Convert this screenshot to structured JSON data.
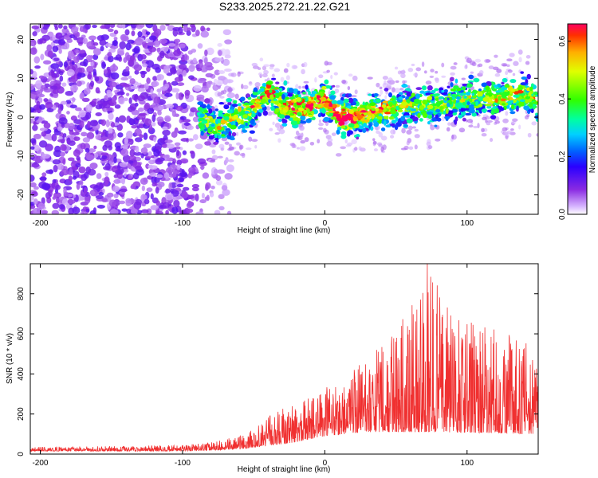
{
  "title": "S233.2025.272.21.22.G21",
  "chart_data": [
    {
      "type": "heatmap",
      "xlabel": "Height of straight line (km)",
      "ylabel": "Frequency (Hz)",
      "xlim": [
        -207,
        150
      ],
      "ylim": [
        -25,
        24
      ],
      "x_ticks": [
        -200,
        -100,
        0,
        100
      ],
      "y_ticks": [
        -20,
        -10,
        0,
        10,
        20
      ],
      "colorbar": {
        "label": "Normalized spectral amplitude",
        "range": [
          0,
          0.66
        ],
        "ticks": [
          0.0,
          0.2,
          0.4,
          0.6
        ]
      },
      "ridge": [
        {
          "x": -85,
          "y": 0
        },
        {
          "x": -75,
          "y": -3
        },
        {
          "x": -65,
          "y": 0
        },
        {
          "x": -55,
          "y": 1
        },
        {
          "x": -45,
          "y": 4
        },
        {
          "x": -40,
          "y": 7
        },
        {
          "x": -30,
          "y": 3
        },
        {
          "x": -20,
          "y": 2
        },
        {
          "x": -10,
          "y": 3
        },
        {
          "x": 0,
          "y": 5
        },
        {
          "x": 10,
          "y": 0
        },
        {
          "x": 20,
          "y": 0
        },
        {
          "x": 40,
          "y": 2
        },
        {
          "x": 60,
          "y": 3
        },
        {
          "x": 80,
          "y": 3
        },
        {
          "x": 100,
          "y": 5
        },
        {
          "x": 120,
          "y": 5
        },
        {
          "x": 140,
          "y": 6
        },
        {
          "x": 150,
          "y": 4
        }
      ],
      "amplitude_by_height": [
        {
          "x": -85,
          "value": 0.3
        },
        {
          "x": -60,
          "value": 0.35
        },
        {
          "x": -40,
          "value": 0.45
        },
        {
          "x": -10,
          "value": 0.55
        },
        {
          "x": 10,
          "value": 0.65
        },
        {
          "x": 20,
          "value": 0.6
        },
        {
          "x": 60,
          "value": 0.3
        },
        {
          "x": 100,
          "value": 0.3
        },
        {
          "x": 120,
          "value": 0.4
        },
        {
          "x": 150,
          "value": 0.35
        }
      ],
      "noise_extent_x": [
        -207,
        -75
      ]
    },
    {
      "type": "line",
      "xlabel": "Height of straight line (km)",
      "ylabel": "SNR (10 * v/v)",
      "xlim": [
        -207,
        150
      ],
      "ylim": [
        0,
        950
      ],
      "x_ticks": [
        -200,
        -100,
        0,
        100
      ],
      "y_ticks": [
        0,
        200,
        400,
        600,
        800
      ],
      "series": [
        {
          "color": "#f03030",
          "envelope_max": [
            {
              "x": -207,
              "y": 35
            },
            {
              "x": -150,
              "y": 40
            },
            {
              "x": -100,
              "y": 45
            },
            {
              "x": -80,
              "y": 60
            },
            {
              "x": -60,
              "y": 90
            },
            {
              "x": -45,
              "y": 150
            },
            {
              "x": -40,
              "y": 200
            },
            {
              "x": -20,
              "y": 260
            },
            {
              "x": 0,
              "y": 330
            },
            {
              "x": 20,
              "y": 420
            },
            {
              "x": 40,
              "y": 550
            },
            {
              "x": 60,
              "y": 720
            },
            {
              "x": 72,
              "y": 950
            },
            {
              "x": 90,
              "y": 700
            },
            {
              "x": 110,
              "y": 640
            },
            {
              "x": 130,
              "y": 600
            },
            {
              "x": 150,
              "y": 560
            }
          ],
          "envelope_base": [
            {
              "x": -207,
              "y": 15
            },
            {
              "x": -100,
              "y": 15
            },
            {
              "x": -80,
              "y": 18
            },
            {
              "x": -60,
              "y": 25
            },
            {
              "x": -40,
              "y": 40
            },
            {
              "x": -20,
              "y": 60
            },
            {
              "x": 0,
              "y": 90
            },
            {
              "x": 30,
              "y": 110
            },
            {
              "x": 80,
              "y": 110
            },
            {
              "x": 150,
              "y": 100
            }
          ],
          "peak": {
            "x": 72,
            "y": 950
          }
        }
      ]
    }
  ]
}
